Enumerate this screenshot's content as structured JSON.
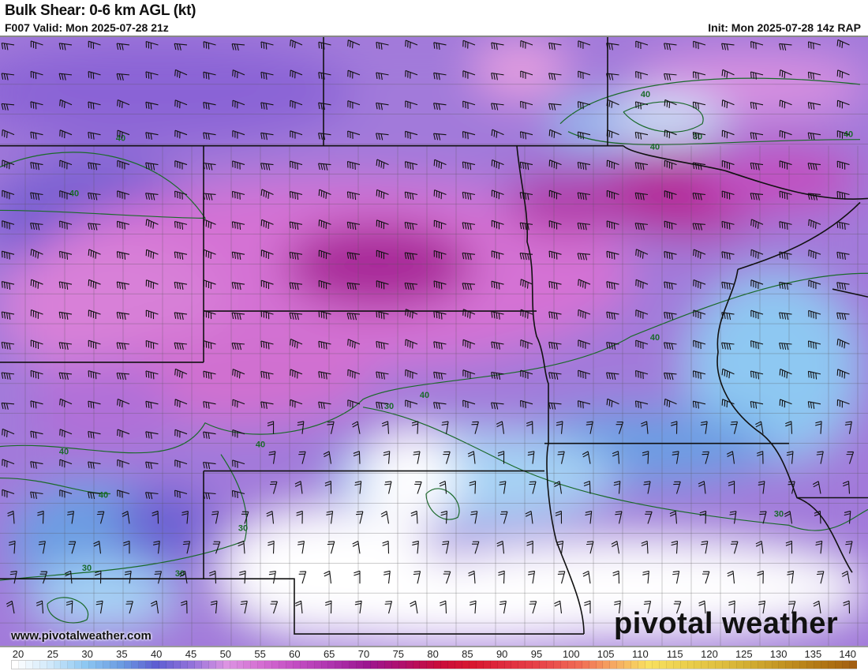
{
  "header": {
    "title": "Bulk Shear: 0-6 km AGL (kt)",
    "valid": "F007 Valid: Mon 2025-07-28 21z",
    "init": "Init: Mon 2025-07-28 14z RAP"
  },
  "footer": {
    "url": "www.pivotalweather.com",
    "logo": "pivotal weather"
  },
  "colorbar": {
    "ticks": [
      "20",
      "25",
      "30",
      "35",
      "40",
      "45",
      "50",
      "55",
      "60",
      "65",
      "70",
      "75",
      "80",
      "85",
      "90",
      "95",
      "100",
      "105",
      "110",
      "115",
      "120",
      "125",
      "130",
      "135",
      "140"
    ],
    "colors": [
      "#ffffff",
      "#cfe8fa",
      "#8ec8f2",
      "#6c9ce2",
      "#5e5ed2",
      "#9272da",
      "#dc94e2",
      "#d46ed2",
      "#c24cc2",
      "#ae34ae",
      "#9c1690",
      "#b0106c",
      "#c80c3c",
      "#d81830",
      "#e02e40",
      "#e8464a",
      "#f06a54",
      "#f6a862",
      "#f8e060",
      "#ecd04e",
      "#e0c040",
      "#d0aa30",
      "#c08e20",
      "#b07414",
      "#a05a10"
    ]
  },
  "contours": {
    "labels": [
      "40",
      "40",
      "30",
      "40",
      "40",
      "40",
      "40",
      "30",
      "40",
      "40",
      "40",
      "30",
      "30",
      "30",
      "30",
      "40"
    ]
  },
  "colors": {
    "contour": "#1a6a2a",
    "border": "#111111",
    "county": "#555555"
  }
}
